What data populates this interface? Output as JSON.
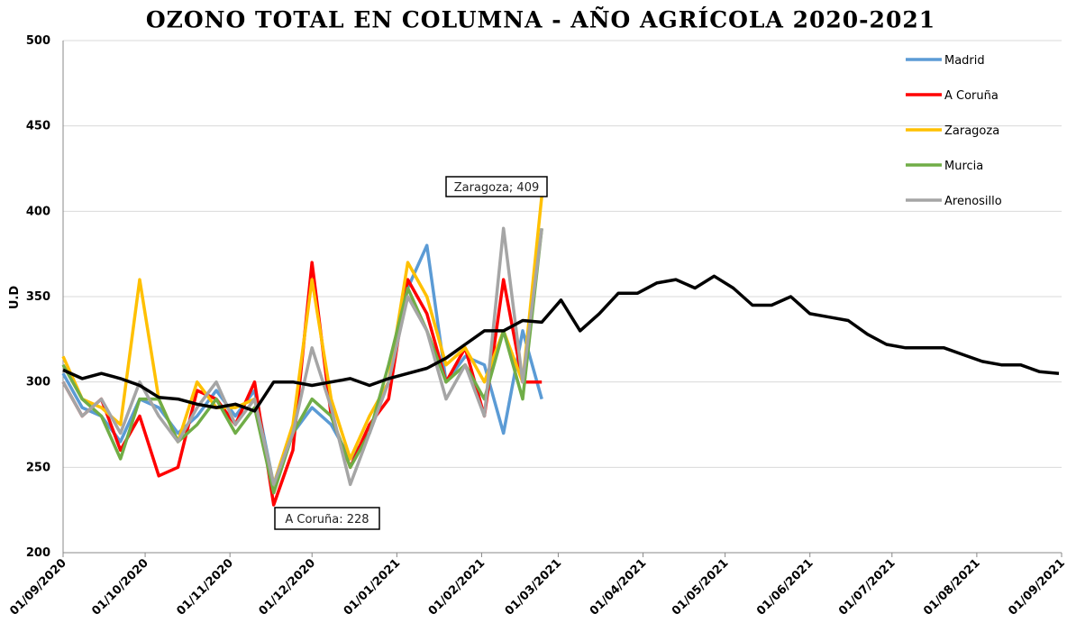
{
  "chart_data": {
    "type": "line",
    "title": "OZONO TOTAL EN COLUMNA - AÑO AGRÍCOLA 2020-2021",
    "y_label": "U.D",
    "x": [
      "2020-09-01",
      "2020-09-08",
      "2020-09-15",
      "2020-09-22",
      "2020-09-29",
      "2020-10-06",
      "2020-10-13",
      "2020-10-20",
      "2020-10-27",
      "2020-11-03",
      "2020-11-10",
      "2020-11-17",
      "2020-11-24",
      "2020-12-01",
      "2020-12-08",
      "2020-12-15",
      "2020-12-22",
      "2020-12-29",
      "2021-01-05",
      "2021-01-12",
      "2021-01-19",
      "2021-01-26",
      "2021-02-02",
      "2021-02-09",
      "2021-02-16",
      "2021-02-23",
      "2021-03-02",
      "2021-03-09",
      "2021-03-16",
      "2021-03-23",
      "2021-03-30",
      "2021-04-06",
      "2021-04-13",
      "2021-04-20",
      "2021-04-27",
      "2021-05-04",
      "2021-05-11",
      "2021-05-18",
      "2021-05-25",
      "2021-06-01",
      "2021-06-08",
      "2021-06-15",
      "2021-06-22",
      "2021-06-29",
      "2021-07-06",
      "2021-07-13",
      "2021-07-20",
      "2021-07-27",
      "2021-08-03",
      "2021-08-10",
      "2021-08-17",
      "2021-08-24",
      "2021-08-31"
    ],
    "series": [
      {
        "name": "Madrid",
        "color": "#5b9bd5",
        "values": [
          305,
          285,
          280,
          265,
          290,
          285,
          270,
          280,
          295,
          280,
          295,
          240,
          270,
          285,
          275,
          255,
          270,
          300,
          355,
          380,
          300,
          315,
          310,
          270,
          330,
          290,
          null,
          null,
          null,
          null,
          null,
          null,
          null,
          null,
          null,
          null,
          null,
          null,
          null,
          null,
          null,
          null,
          null,
          null,
          null,
          null,
          null,
          null,
          null,
          null,
          null,
          null,
          null
        ]
      },
      {
        "name": "A Coruña",
        "color": "#ff0000",
        "values": [
          300,
          280,
          290,
          260,
          280,
          245,
          250,
          295,
          290,
          275,
          300,
          228,
          260,
          370,
          280,
          250,
          275,
          290,
          360,
          340,
          300,
          320,
          280,
          360,
          300,
          300,
          null,
          null,
          null,
          null,
          null,
          null,
          null,
          null,
          null,
          null,
          null,
          null,
          null,
          null,
          null,
          null,
          null,
          null,
          null,
          null,
          null,
          null,
          null,
          null,
          null,
          null,
          null
        ]
      },
      {
        "name": "Zaragoza",
        "color": "#ffc000",
        "values": [
          315,
          290,
          285,
          275,
          360,
          290,
          265,
          300,
          285,
          285,
          290,
          240,
          275,
          360,
          290,
          255,
          280,
          300,
          370,
          350,
          310,
          320,
          300,
          330,
          300,
          409,
          null,
          null,
          null,
          null,
          null,
          null,
          null,
          null,
          null,
          null,
          null,
          null,
          null,
          null,
          null,
          null,
          null,
          null,
          null,
          null,
          null,
          null,
          null,
          null,
          null,
          null,
          null
        ]
      },
      {
        "name": "Murcia",
        "color": "#70ad47",
        "values": [
          310,
          290,
          280,
          255,
          290,
          290,
          265,
          275,
          290,
          270,
          285,
          235,
          270,
          290,
          280,
          250,
          270,
          310,
          355,
          330,
          300,
          310,
          290,
          330,
          290,
          390,
          null,
          null,
          null,
          null,
          null,
          null,
          null,
          null,
          null,
          null,
          null,
          null,
          null,
          null,
          null,
          null,
          null,
          null,
          null,
          null,
          null,
          null,
          null,
          null,
          null,
          null,
          null
        ]
      },
      {
        "name": "Arenosillo",
        "color": "#a5a5a5",
        "values": [
          300,
          280,
          290,
          270,
          300,
          280,
          265,
          285,
          300,
          275,
          290,
          240,
          270,
          320,
          285,
          240,
          270,
          300,
          350,
          330,
          290,
          310,
          280,
          390,
          300,
          390,
          null,
          null,
          null,
          null,
          null,
          null,
          null,
          null,
          null,
          null,
          null,
          null,
          null,
          null,
          null,
          null,
          null,
          null,
          null,
          null,
          null,
          null,
          null,
          null,
          null,
          null,
          null
        ]
      },
      {
        "color": "#000000",
        "values": [
          307,
          302,
          305,
          302,
          298,
          291,
          290,
          287,
          285,
          287,
          283,
          300,
          300,
          298,
          300,
          302,
          298,
          302,
          305,
          308,
          314,
          322,
          330,
          330,
          336,
          335,
          348,
          330,
          340,
          352,
          352,
          358,
          360,
          355,
          362,
          355,
          345,
          345,
          350,
          340,
          338,
          336,
          328,
          322,
          320,
          320,
          320,
          316,
          312,
          310,
          310,
          306,
          305
        ]
      }
    ],
    "annotations": [
      "Zaragoza; 409",
      "A Coruña: 228"
    ],
    "xlim": [
      "2020-09-01",
      "2021-09-01"
    ],
    "xticks": [
      {
        "value": "2020-09-01",
        "label": "01/09/2020"
      },
      {
        "value": "2020-10-01",
        "label": "01/10/2020"
      },
      {
        "value": "2020-11-01",
        "label": "01/11/2020"
      },
      {
        "value": "2020-12-01",
        "label": "01/12/2020"
      },
      {
        "value": "2021-01-01",
        "label": "01/01/2021"
      },
      {
        "value": "2021-02-01",
        "label": "01/02/2021"
      },
      {
        "value": "2021-03-01",
        "label": "01/03/2021"
      },
      {
        "value": "2021-04-01",
        "label": "01/04/2021"
      },
      {
        "value": "2021-05-01",
        "label": "01/05/2021"
      },
      {
        "value": "2021-06-01",
        "label": "01/06/2021"
      },
      {
        "value": "2021-07-01",
        "label": "01/07/2021"
      },
      {
        "value": "2021-08-01",
        "label": "01/08/2021"
      },
      {
        "value": "2021-09-01",
        "label": "01/09/2021"
      }
    ],
    "ylim": [
      200,
      500
    ],
    "yticks": [
      200,
      250,
      300,
      350,
      400,
      450,
      500
    ],
    "grid": true
  }
}
